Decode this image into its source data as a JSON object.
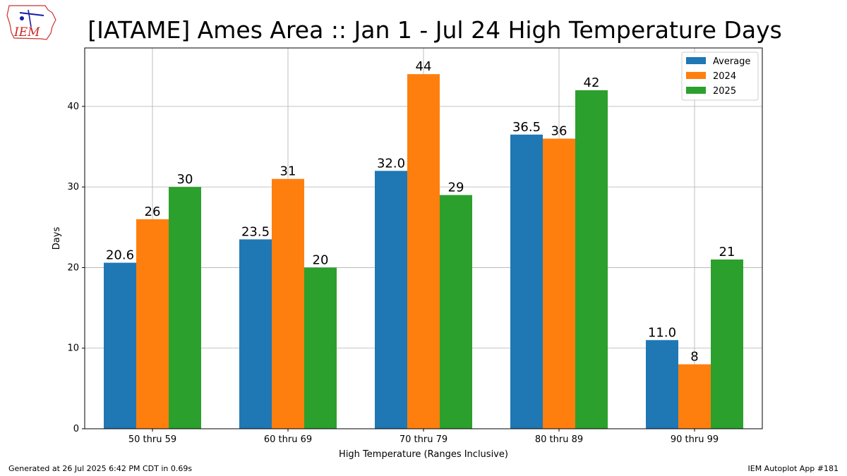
{
  "chart_data": {
    "type": "bar",
    "title": "[IATAME] Ames Area :: Jan 1 - Jul 24 High Temperature Days",
    "xlabel": "High Temperature (Ranges Inclusive)",
    "ylabel": "Days",
    "categories": [
      "50 thru 59",
      "60 thru 69",
      "70 thru 79",
      "80 thru 89",
      "90 thru 99"
    ],
    "series": [
      {
        "name": "Average",
        "color": "#1f77b4",
        "values": [
          20.6,
          23.5,
          32.0,
          36.5,
          11.0
        ],
        "labels": [
          "20.6",
          "23.5",
          "32.0",
          "36.5",
          "11.0"
        ]
      },
      {
        "name": "2024",
        "color": "#ff7f0e",
        "values": [
          26,
          31,
          44,
          36,
          8
        ],
        "labels": [
          "26",
          "31",
          "44",
          "36",
          "8"
        ]
      },
      {
        "name": "2025",
        "color": "#2ca02c",
        "values": [
          30,
          20,
          29,
          42,
          21
        ],
        "labels": [
          "30",
          "20",
          "29",
          "42",
          "21"
        ]
      }
    ],
    "ylim": [
      0,
      47.25
    ],
    "yticks": [
      0,
      10,
      20,
      30,
      40
    ],
    "grid": true,
    "legend_position": "top-right"
  },
  "logo": {
    "text": "IEM",
    "icon": "iowa-weather-station-logo"
  },
  "footer": {
    "left": "Generated at 26 Jul 2025 6:42 PM CDT in 0.69s",
    "right": "IEM Autoplot App #181"
  }
}
